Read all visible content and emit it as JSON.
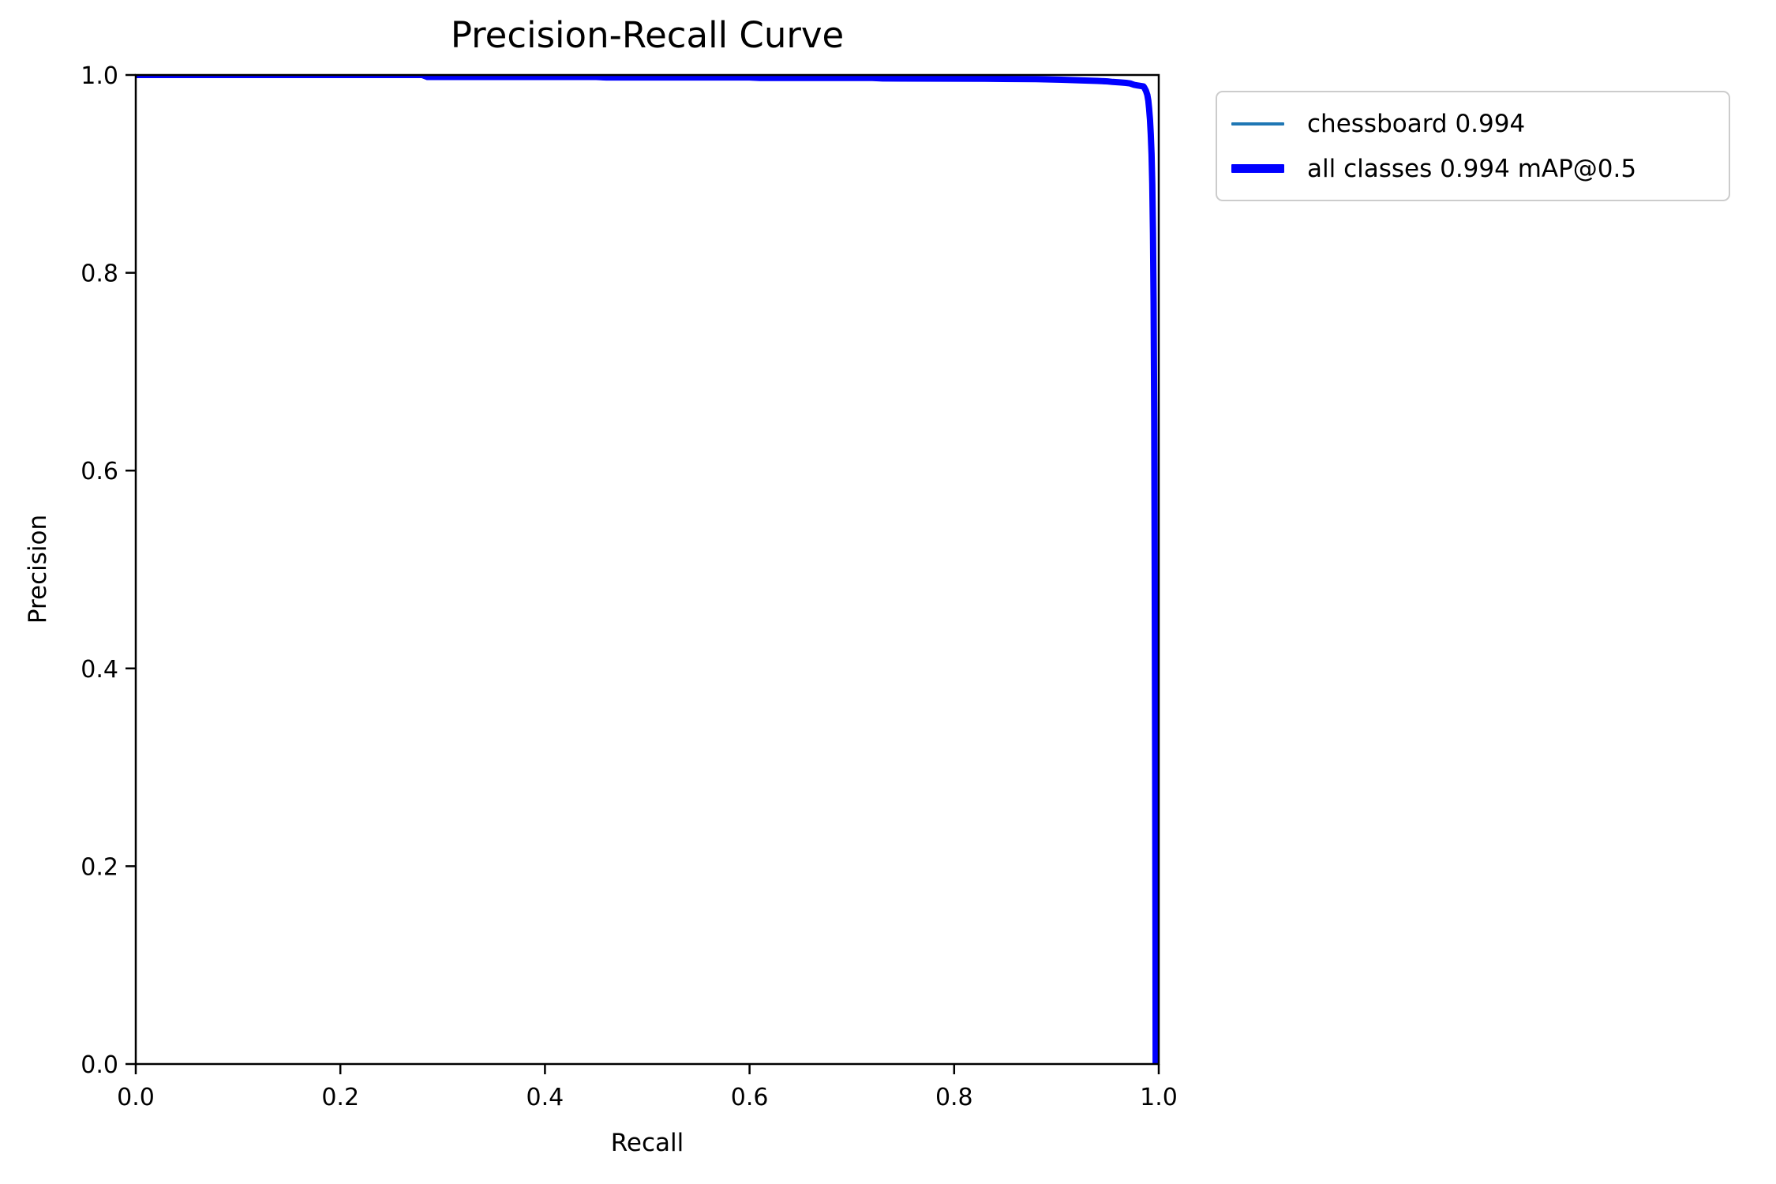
{
  "figure": {
    "background": "#ffffff",
    "spine_color": "#000000"
  },
  "chart_data": {
    "type": "line",
    "title": "Precision-Recall Curve",
    "xlabel": "Recall",
    "ylabel": "Precision",
    "xlim": [
      0.0,
      1.0
    ],
    "ylim": [
      0.0,
      1.0
    ],
    "x_ticks": [
      "0.0",
      "0.2",
      "0.4",
      "0.6",
      "0.8",
      "1.0"
    ],
    "y_ticks": [
      "0.0",
      "0.2",
      "0.4",
      "0.6",
      "0.8",
      "1.0"
    ],
    "grid": false,
    "legend_position": "outside-upper-right",
    "series": [
      {
        "name": "chessboard 0.994",
        "color": "#1f77b4",
        "style": "thin",
        "ap": 0.994,
        "points": [
          [
            0.0,
            1.0
          ],
          [
            0.28,
            1.0
          ],
          [
            0.285,
            0.998
          ],
          [
            0.45,
            0.998
          ],
          [
            0.46,
            0.9975
          ],
          [
            0.6,
            0.9975
          ],
          [
            0.61,
            0.997
          ],
          [
            0.72,
            0.997
          ],
          [
            0.73,
            0.9965
          ],
          [
            0.83,
            0.9962
          ],
          [
            0.88,
            0.9958
          ],
          [
            0.905,
            0.9952
          ],
          [
            0.925,
            0.9945
          ],
          [
            0.94,
            0.994
          ],
          [
            0.95,
            0.9935
          ],
          [
            0.955,
            0.993
          ],
          [
            0.962,
            0.9925
          ],
          [
            0.968,
            0.992
          ],
          [
            0.972,
            0.9915
          ],
          [
            0.976,
            0.99
          ],
          [
            0.979,
            0.9895
          ],
          [
            0.982,
            0.989
          ],
          [
            0.985,
            0.9885
          ],
          [
            0.986,
            0.987
          ],
          [
            0.9875,
            0.984
          ],
          [
            0.9888,
            0.98
          ],
          [
            0.9898,
            0.974
          ],
          [
            0.9906,
            0.966
          ],
          [
            0.9914,
            0.955
          ],
          [
            0.9922,
            0.94
          ],
          [
            0.993,
            0.92
          ],
          [
            0.9937,
            0.89
          ],
          [
            0.9944,
            0.84
          ],
          [
            0.995,
            0.77
          ],
          [
            0.9956,
            0.65
          ],
          [
            0.9961,
            0.5
          ],
          [
            0.9965,
            0.3
          ],
          [
            0.9968,
            0.12
          ],
          [
            0.997,
            0.0
          ]
        ]
      },
      {
        "name": "all classes 0.994 mAP@0.5",
        "color": "#0000ff",
        "style": "thick",
        "ap": 0.994,
        "map_at_05": 0.994,
        "points": [
          [
            0.0,
            1.0
          ],
          [
            0.28,
            1.0
          ],
          [
            0.285,
            0.998
          ],
          [
            0.45,
            0.998
          ],
          [
            0.46,
            0.9975
          ],
          [
            0.6,
            0.9975
          ],
          [
            0.61,
            0.997
          ],
          [
            0.72,
            0.997
          ],
          [
            0.73,
            0.9965
          ],
          [
            0.83,
            0.9962
          ],
          [
            0.88,
            0.9958
          ],
          [
            0.905,
            0.9952
          ],
          [
            0.925,
            0.9945
          ],
          [
            0.94,
            0.994
          ],
          [
            0.95,
            0.9935
          ],
          [
            0.955,
            0.993
          ],
          [
            0.962,
            0.9925
          ],
          [
            0.968,
            0.992
          ],
          [
            0.972,
            0.9915
          ],
          [
            0.976,
            0.99
          ],
          [
            0.979,
            0.9895
          ],
          [
            0.982,
            0.989
          ],
          [
            0.985,
            0.9885
          ],
          [
            0.986,
            0.987
          ],
          [
            0.9875,
            0.984
          ],
          [
            0.9888,
            0.98
          ],
          [
            0.9898,
            0.974
          ],
          [
            0.9906,
            0.966
          ],
          [
            0.9914,
            0.955
          ],
          [
            0.9922,
            0.94
          ],
          [
            0.993,
            0.92
          ],
          [
            0.9937,
            0.89
          ],
          [
            0.9944,
            0.84
          ],
          [
            0.995,
            0.77
          ],
          [
            0.9956,
            0.65
          ],
          [
            0.9961,
            0.5
          ],
          [
            0.9965,
            0.3
          ],
          [
            0.9968,
            0.12
          ],
          [
            0.997,
            0.0
          ]
        ]
      }
    ]
  },
  "legend": {
    "items": [
      {
        "label": "chessboard 0.994",
        "color": "#1f77b4",
        "style": "thin"
      },
      {
        "label": "all classes 0.994 mAP@0.5",
        "color": "#0000ff",
        "style": "thick"
      }
    ]
  }
}
